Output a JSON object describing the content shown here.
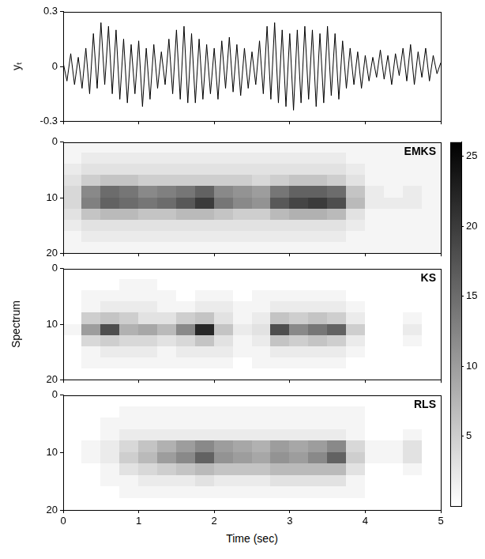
{
  "chart_data": [
    {
      "type": "line",
      "ylabel": "yₜ",
      "color": "#000000",
      "grid": false,
      "tick_labels": "y",
      "xlim": [
        0,
        5
      ],
      "xticks": [
        0,
        1,
        2,
        3,
        4,
        5
      ],
      "ylim": [
        -0.3,
        0.3
      ],
      "yticks": [
        -0.3,
        0,
        0.3
      ],
      "x": [
        0,
        0.05,
        0.1,
        0.15,
        0.2,
        0.25,
        0.3,
        0.35,
        0.4,
        0.45,
        0.5,
        0.55,
        0.6,
        0.65,
        0.7,
        0.75,
        0.8,
        0.85,
        0.9,
        0.95,
        1,
        1.05,
        1.1,
        1.15,
        1.2,
        1.25,
        1.3,
        1.35,
        1.4,
        1.45,
        1.5,
        1.55,
        1.6,
        1.65,
        1.7,
        1.75,
        1.8,
        1.85,
        1.9,
        1.95,
        2,
        2.05,
        2.1,
        2.15,
        2.2,
        2.25,
        2.3,
        2.35,
        2.4,
        2.45,
        2.5,
        2.55,
        2.6,
        2.65,
        2.7,
        2.75,
        2.8,
        2.85,
        2.9,
        2.95,
        3,
        3.05,
        3.1,
        3.15,
        3.2,
        3.25,
        3.3,
        3.35,
        3.4,
        3.45,
        3.5,
        3.55,
        3.6,
        3.65,
        3.7,
        3.75,
        3.8,
        3.85,
        3.9,
        3.95,
        4,
        4.05,
        4.1,
        4.15,
        4.2,
        4.25,
        4.3,
        4.35,
        4.4,
        4.45,
        4.5,
        4.55,
        4.6,
        4.65,
        4.7,
        4.75,
        4.8,
        4.85,
        4.9,
        4.95,
        5
      ],
      "values": [
        0.02,
        -0.08,
        0.07,
        -0.1,
        0.05,
        -0.12,
        0.1,
        -0.15,
        0.18,
        -0.12,
        0.24,
        -0.1,
        0.22,
        -0.15,
        0.2,
        -0.18,
        0.15,
        -0.2,
        0.12,
        -0.15,
        0.14,
        -0.22,
        0.1,
        -0.18,
        0.12,
        -0.12,
        0.08,
        -0.1,
        0.15,
        -0.15,
        0.2,
        -0.18,
        0.22,
        -0.2,
        0.18,
        -0.2,
        0.15,
        -0.18,
        0.12,
        -0.15,
        0.1,
        -0.18,
        0.14,
        -0.12,
        0.16,
        -0.14,
        0.12,
        -0.16,
        0.1,
        -0.12,
        0.08,
        -0.1,
        0.14,
        -0.15,
        0.22,
        -0.18,
        0.24,
        -0.2,
        0.2,
        -0.22,
        0.18,
        -0.24,
        0.2,
        -0.2,
        0.22,
        -0.18,
        0.2,
        -0.22,
        0.18,
        -0.2,
        0.22,
        -0.16,
        0.18,
        -0.18,
        0.14,
        -0.12,
        0.1,
        -0.1,
        0.08,
        -0.12,
        0.06,
        -0.08,
        0.05,
        -0.06,
        0.09,
        -0.07,
        0.06,
        -0.1,
        0.07,
        -0.05,
        0.1,
        -0.08,
        0.12,
        -0.1,
        0.08,
        -0.06,
        0.1,
        -0.08,
        0.06,
        -0.04,
        0.02
      ]
    },
    {
      "type": "heatmap",
      "title": "EMKS",
      "grid": false,
      "tick_labels": "y",
      "xlim": [
        0,
        5
      ],
      "xticks": [
        0,
        1,
        2,
        3,
        4,
        5
      ],
      "ylim": [
        0,
        20
      ],
      "yticks": [
        0,
        10,
        20
      ],
      "time_bins": [
        0,
        0.25,
        0.5,
        0.75,
        1,
        1.25,
        1.5,
        1.75,
        2,
        2.25,
        2.5,
        2.75,
        3,
        3.25,
        3.5,
        3.75,
        4,
        4.25,
        4.5,
        4.75,
        5
      ],
      "freq_bins": [
        0,
        2,
        4,
        6,
        8,
        10,
        12,
        14,
        16,
        18,
        20
      ],
      "cells": [
        [
          1,
          1,
          1,
          1,
          1,
          1,
          1,
          1,
          1,
          1,
          1,
          1,
          1,
          1,
          1,
          1,
          1,
          1,
          1,
          1
        ],
        [
          1,
          2,
          2,
          2,
          2,
          2,
          2,
          2,
          2,
          2,
          2,
          2,
          2,
          2,
          2,
          1,
          1,
          1,
          1,
          1
        ],
        [
          2,
          3,
          3,
          3,
          3,
          3,
          3,
          3,
          3,
          3,
          3,
          3,
          3,
          3,
          3,
          2,
          1,
          1,
          1,
          1
        ],
        [
          3,
          5,
          6,
          6,
          5,
          5,
          5,
          5,
          5,
          5,
          4,
          5,
          6,
          6,
          5,
          3,
          1,
          1,
          1,
          1
        ],
        [
          4,
          12,
          15,
          14,
          12,
          13,
          14,
          16,
          12,
          11,
          10,
          14,
          16,
          16,
          15,
          6,
          2,
          1,
          2,
          1
        ],
        [
          4,
          13,
          16,
          15,
          14,
          15,
          17,
          20,
          14,
          12,
          11,
          17,
          19,
          20,
          18,
          7,
          2,
          2,
          2,
          1
        ],
        [
          3,
          6,
          7,
          7,
          6,
          6,
          7,
          7,
          6,
          5,
          5,
          7,
          8,
          8,
          7,
          3,
          1,
          1,
          1,
          1
        ],
        [
          2,
          3,
          3,
          3,
          3,
          3,
          3,
          3,
          3,
          3,
          3,
          3,
          3,
          3,
          3,
          2,
          1,
          1,
          1,
          1
        ],
        [
          1,
          2,
          2,
          2,
          2,
          2,
          2,
          2,
          2,
          2,
          2,
          2,
          2,
          2,
          2,
          1,
          1,
          1,
          1,
          1
        ],
        [
          1,
          1,
          1,
          1,
          1,
          1,
          1,
          1,
          1,
          1,
          1,
          1,
          1,
          1,
          1,
          1,
          1,
          1,
          1,
          1
        ]
      ],
      "colorbar": {
        "range": [
          0,
          26
        ],
        "ticks": [
          5,
          10,
          15,
          20,
          25
        ]
      }
    },
    {
      "type": "heatmap",
      "title": "KS",
      "ylabel": "Spectrum",
      "grid": false,
      "tick_labels": "y",
      "xlim": [
        0,
        5
      ],
      "xticks": [
        0,
        1,
        2,
        3,
        4,
        5
      ],
      "ylim": [
        0,
        20
      ],
      "yticks": [
        0,
        10,
        20
      ],
      "time_bins": [
        0,
        0.25,
        0.5,
        0.75,
        1,
        1.25,
        1.5,
        1.75,
        2,
        2.25,
        2.5,
        2.75,
        3,
        3.25,
        3.5,
        3.75,
        4,
        4.25,
        4.5,
        4.75,
        5
      ],
      "freq_bins": [
        0,
        2,
        4,
        6,
        8,
        10,
        12,
        14,
        16,
        18,
        20
      ],
      "cells": [
        [
          0,
          0,
          0,
          0,
          0,
          0,
          0,
          0,
          0,
          0,
          0,
          0,
          0,
          0,
          0,
          0,
          0,
          0,
          0,
          0
        ],
        [
          0,
          0,
          0,
          1,
          1,
          0,
          0,
          0,
          0,
          0,
          0,
          0,
          0,
          0,
          0,
          0,
          0,
          0,
          0,
          0
        ],
        [
          0,
          1,
          1,
          1,
          1,
          1,
          0,
          1,
          1,
          0,
          1,
          1,
          1,
          1,
          1,
          0,
          0,
          0,
          0,
          0
        ],
        [
          0,
          1,
          2,
          2,
          2,
          1,
          1,
          2,
          2,
          1,
          1,
          2,
          2,
          2,
          2,
          1,
          0,
          0,
          0,
          0
        ],
        [
          0,
          5,
          6,
          5,
          3,
          3,
          5,
          6,
          3,
          1,
          2,
          6,
          5,
          6,
          5,
          2,
          0,
          0,
          1,
          0
        ],
        [
          1,
          10,
          18,
          8,
          9,
          7,
          12,
          22,
          6,
          2,
          3,
          18,
          12,
          14,
          16,
          5,
          0,
          0,
          2,
          0
        ],
        [
          0,
          4,
          5,
          4,
          4,
          3,
          4,
          6,
          3,
          1,
          2,
          6,
          5,
          6,
          5,
          2,
          0,
          0,
          1,
          0
        ],
        [
          0,
          1,
          2,
          2,
          2,
          1,
          2,
          2,
          2,
          1,
          1,
          2,
          2,
          2,
          2,
          1,
          0,
          0,
          0,
          0
        ],
        [
          0,
          1,
          1,
          1,
          1,
          1,
          1,
          1,
          1,
          0,
          1,
          1,
          1,
          1,
          1,
          0,
          0,
          0,
          0,
          0
        ],
        [
          0,
          0,
          0,
          0,
          0,
          0,
          0,
          0,
          0,
          0,
          0,
          0,
          0,
          0,
          0,
          0,
          0,
          0,
          0,
          0
        ]
      ],
      "colorbar": {
        "range": [
          0,
          26
        ],
        "ticks": [
          5,
          10,
          15,
          20,
          25
        ]
      }
    },
    {
      "type": "heatmap",
      "title": "RLS",
      "xlabel": "Time (sec)",
      "grid": false,
      "tick_labels": true,
      "xlim": [
        0,
        5
      ],
      "xticks": [
        0,
        1,
        2,
        3,
        4,
        5
      ],
      "ylim": [
        0,
        20
      ],
      "yticks": [
        0,
        10,
        20
      ],
      "time_bins": [
        0,
        0.25,
        0.5,
        0.75,
        1,
        1.25,
        1.5,
        1.75,
        2,
        2.25,
        2.5,
        2.75,
        3,
        3.25,
        3.5,
        3.75,
        4,
        4.25,
        4.5,
        4.75,
        5
      ],
      "freq_bins": [
        0,
        2,
        4,
        6,
        8,
        10,
        12,
        14,
        16,
        18,
        20
      ],
      "cells": [
        [
          0,
          0,
          0,
          0,
          0,
          0,
          0,
          0,
          0,
          0,
          0,
          0,
          0,
          0,
          0,
          0,
          0,
          0,
          0,
          0
        ],
        [
          0,
          0,
          0,
          1,
          1,
          1,
          1,
          1,
          1,
          1,
          1,
          1,
          1,
          1,
          1,
          1,
          0,
          0,
          0,
          0
        ],
        [
          0,
          0,
          1,
          1,
          1,
          1,
          1,
          1,
          1,
          1,
          1,
          1,
          1,
          1,
          1,
          1,
          0,
          0,
          0,
          0
        ],
        [
          0,
          0,
          1,
          2,
          2,
          2,
          2,
          2,
          2,
          2,
          2,
          2,
          2,
          2,
          2,
          1,
          0,
          0,
          1,
          0
        ],
        [
          0,
          1,
          2,
          4,
          6,
          8,
          10,
          12,
          10,
          9,
          8,
          10,
          9,
          10,
          12,
          4,
          1,
          1,
          3,
          0
        ],
        [
          0,
          1,
          2,
          5,
          7,
          10,
          12,
          16,
          11,
          10,
          9,
          11,
          10,
          12,
          16,
          5,
          1,
          1,
          3,
          0
        ],
        [
          0,
          0,
          1,
          3,
          4,
          5,
          6,
          7,
          6,
          6,
          6,
          7,
          7,
          7,
          7,
          3,
          0,
          0,
          1,
          0
        ],
        [
          0,
          0,
          1,
          1,
          2,
          2,
          2,
          3,
          2,
          2,
          2,
          3,
          3,
          3,
          3,
          1,
          0,
          0,
          0,
          0
        ],
        [
          0,
          0,
          0,
          1,
          1,
          1,
          1,
          1,
          1,
          1,
          1,
          1,
          1,
          1,
          1,
          1,
          0,
          0,
          0,
          0
        ],
        [
          0,
          0,
          0,
          0,
          0,
          0,
          0,
          0,
          0,
          0,
          0,
          0,
          0,
          0,
          0,
          0,
          0,
          0,
          0,
          0
        ]
      ],
      "colorbar": {
        "range": [
          0,
          26
        ],
        "ticks": [
          5,
          10,
          15,
          20,
          25
        ]
      }
    }
  ]
}
